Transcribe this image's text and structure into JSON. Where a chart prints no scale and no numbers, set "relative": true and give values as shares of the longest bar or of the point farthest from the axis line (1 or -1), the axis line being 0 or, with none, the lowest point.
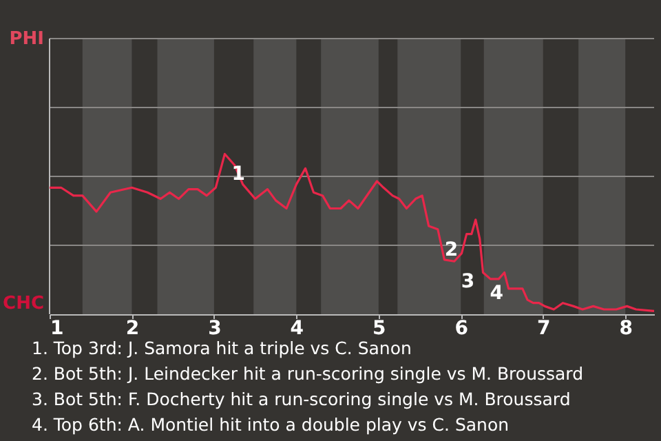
{
  "chart_data": {
    "type": "line",
    "relative": true,
    "x": [
      1.0,
      1.14,
      1.29,
      1.4,
      1.57,
      1.74,
      2.0,
      2.19,
      2.35,
      2.46,
      2.57,
      2.69,
      2.8,
      2.91,
      3.02,
      3.13,
      3.25,
      3.35,
      3.5,
      3.65,
      3.75,
      3.88,
      4.0,
      4.11,
      4.21,
      4.32,
      4.41,
      4.54,
      4.64,
      4.75,
      4.98,
      5.06,
      5.17,
      5.25,
      5.34,
      5.45,
      5.53,
      5.61,
      5.72,
      5.8,
      5.92,
      6.01,
      6.07,
      6.13,
      6.18,
      6.23,
      6.27,
      6.36,
      6.46,
      6.53,
      6.58,
      6.75,
      6.81,
      6.88,
      6.95,
      7.02,
      7.13,
      7.24,
      7.37,
      7.48,
      7.61,
      7.74,
      7.89,
      8.02,
      8.13,
      8.35
    ],
    "series": [
      {
        "color": "#e8274a",
        "values": [
          0.79,
          0.79,
          0.74,
          0.74,
          0.64,
          0.76,
          0.79,
          0.76,
          0.72,
          0.76,
          0.72,
          0.78,
          0.78,
          0.74,
          0.79,
          1,
          0.93,
          0.81,
          0.72,
          0.78,
          0.71,
          0.66,
          0.81,
          0.91,
          0.76,
          0.74,
          0.66,
          0.66,
          0.71,
          0.66,
          0.83,
          0.79,
          0.74,
          0.72,
          0.66,
          0.72,
          0.74,
          0.55,
          0.53,
          0.34,
          0.33,
          0.38,
          0.5,
          0.5,
          0.59,
          0.47,
          0.26,
          0.22,
          0.22,
          0.26,
          0.16,
          0.16,
          0.09,
          0.07,
          0.07,
          0.05,
          0.03,
          0.07,
          0.05,
          0.03,
          0.05,
          0.03,
          0.03,
          0.05,
          0.03,
          0.02
        ]
      }
    ],
    "xlim": [
      1,
      8.35
    ],
    "xticks": [
      1,
      2,
      3,
      4,
      5,
      6,
      7,
      8
    ],
    "ref_lines": [
      {
        "axis": "y",
        "value": 0.43,
        "color": "#8a8886"
      },
      {
        "axis": "y",
        "value": 0.86,
        "color": "#8a8886"
      },
      {
        "axis": "y",
        "value": 1.29,
        "color": "#8a8886"
      },
      {
        "axis": "y",
        "value": 1.72,
        "color": "#8a8886"
      }
    ],
    "marker": "none",
    "line_style": "solid",
    "bands": [
      {
        "axis": "x",
        "from": 1.4,
        "to": 2.0,
        "color": "#4f4e4c"
      },
      {
        "axis": "x",
        "from": 2.31,
        "to": 3.0,
        "color": "#4f4e4c"
      },
      {
        "axis": "x",
        "from": 3.48,
        "to": 4.0,
        "color": "#4f4e4c"
      },
      {
        "axis": "x",
        "from": 4.3,
        "to": 5.0,
        "color": "#4f4e4c"
      },
      {
        "axis": "x",
        "from": 5.23,
        "to": 6.0,
        "color": "#4f4e4c"
      },
      {
        "axis": "x",
        "from": 6.28,
        "to": 7.0,
        "color": "#4f4e4c"
      },
      {
        "axis": "x",
        "from": 7.43,
        "to": 8.0,
        "color": "#4f4e4c"
      }
    ],
    "annotations": [
      {
        "text": "1",
        "x": 3.13,
        "y": 1
      },
      {
        "text": "2",
        "x": 5.72,
        "y": 0.53
      },
      {
        "text": "3",
        "x": 5.92,
        "y": 0.33
      },
      {
        "text": "4",
        "x": 6.27,
        "y": 0.26
      },
      "PHI",
      "CHC",
      "1. Top 3rd: J. Samora hit a triple vs C. Sanon",
      "2. Bot 5th: J. Leindecker hit a run-scoring single vs M. Broussard",
      "3. Bot 5th: F. Docherty hit a run-scoring single vs M. Broussard",
      "4. Top 6th: A. Montiel hit into a double play vs C. Sanon"
    ]
  }
}
